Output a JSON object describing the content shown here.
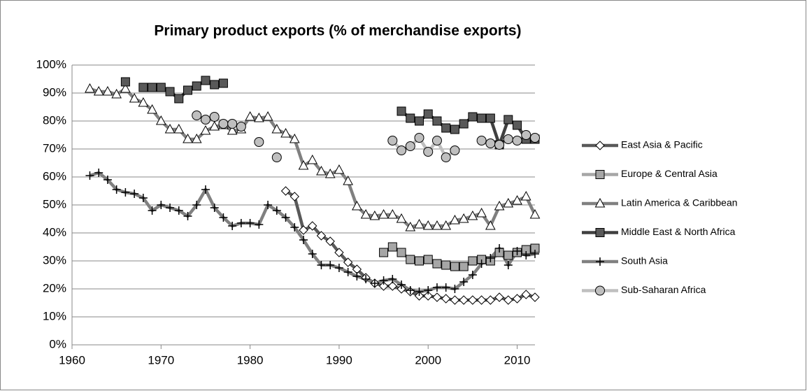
{
  "chart_data": {
    "type": "line",
    "title": "Primary product exports (% of merchandise exports)",
    "x": [
      1962,
      1963,
      1964,
      1965,
      1966,
      1967,
      1968,
      1969,
      1970,
      1971,
      1972,
      1973,
      1974,
      1975,
      1976,
      1977,
      1978,
      1979,
      1980,
      1981,
      1982,
      1983,
      1984,
      1985,
      1986,
      1987,
      1988,
      1989,
      1990,
      1991,
      1992,
      1993,
      1994,
      1995,
      1996,
      1997,
      1998,
      1999,
      2000,
      2001,
      2002,
      2003,
      2004,
      2005,
      2006,
      2007,
      2008,
      2009,
      2010,
      2011,
      2012
    ],
    "xlim": [
      1960,
      2012
    ],
    "xticks": [
      1960,
      1970,
      1980,
      1990,
      2000,
      2010
    ],
    "ylim": [
      0,
      100
    ],
    "yticks": [
      {
        "value": 0,
        "label": "0%"
      },
      {
        "value": 10,
        "label": "10%"
      },
      {
        "value": 20,
        "label": "20%"
      },
      {
        "value": 30,
        "label": "30%"
      },
      {
        "value": 40,
        "label": "40%"
      },
      {
        "value": 50,
        "label": "50%"
      },
      {
        "value": 60,
        "label": "60%"
      },
      {
        "value": 70,
        "label": "70%"
      },
      {
        "value": 80,
        "label": "80%"
      },
      {
        "value": 90,
        "label": "90%"
      },
      {
        "value": 100,
        "label": "100%"
      }
    ],
    "grid": true,
    "legend": "right",
    "series": [
      {
        "name": "East Asia & Pacific",
        "color": "#595959",
        "marker": "diamond",
        "marker_fill": "#ffffff",
        "values": [
          null,
          null,
          null,
          null,
          null,
          null,
          null,
          null,
          null,
          null,
          null,
          null,
          null,
          null,
          null,
          null,
          null,
          null,
          null,
          null,
          null,
          null,
          55,
          53,
          41,
          42.5,
          39,
          37,
          33,
          29.5,
          27,
          24,
          22,
          21,
          21,
          20,
          19,
          17.5,
          17.5,
          17,
          16.5,
          16,
          16,
          16,
          16,
          16,
          17,
          16,
          16.5,
          18,
          17
        ]
      },
      {
        "name": "Europe & Central Asia",
        "color": "#a6a6a6",
        "marker": "square",
        "marker_fill": "#a6a6a6",
        "values": [
          null,
          null,
          null,
          null,
          null,
          null,
          null,
          null,
          null,
          null,
          null,
          null,
          null,
          null,
          null,
          null,
          null,
          null,
          null,
          null,
          null,
          null,
          null,
          null,
          null,
          null,
          null,
          null,
          null,
          null,
          null,
          null,
          null,
          33,
          35,
          33,
          30.5,
          30,
          30.5,
          29,
          28.5,
          28,
          28,
          30,
          30.5,
          30,
          33,
          32,
          33,
          34,
          34.5
        ]
      },
      {
        "name": "Latin America & Caribbean",
        "color": "#808080",
        "marker": "triangle",
        "marker_fill": "#ffffff",
        "values": [
          91.5,
          90.5,
          90.5,
          89.5,
          91.5,
          88,
          86.5,
          84,
          80,
          77,
          77,
          73.5,
          73.5,
          76.5,
          78,
          78.5,
          76.5,
          77,
          81.5,
          81,
          81.5,
          77,
          75.5,
          73.5,
          64,
          66,
          62,
          61,
          62.5,
          58.5,
          49.5,
          46.5,
          46,
          46.5,
          46.5,
          45,
          42,
          43,
          42.5,
          42.5,
          42.5,
          44.5,
          45,
          46,
          47,
          42.5,
          49.5,
          50.5,
          51.5,
          53,
          46.5
        ]
      },
      {
        "name": "Middle East & North Africa",
        "color": "#404040",
        "marker": "square",
        "marker_fill": "#595959",
        "values": [
          null,
          null,
          null,
          null,
          94,
          null,
          92,
          92,
          92,
          90.5,
          88,
          91,
          92.5,
          94.5,
          93,
          93.5,
          null,
          null,
          null,
          null,
          null,
          null,
          null,
          null,
          null,
          null,
          null,
          null,
          null,
          null,
          null,
          null,
          null,
          null,
          null,
          83.5,
          81,
          80,
          82.5,
          80,
          77.5,
          77,
          79,
          81.5,
          81,
          81,
          71.5,
          80.5,
          78.5,
          73.5,
          73.5
        ]
      },
      {
        "name": "South Asia",
        "color": "#808080",
        "marker": "plus",
        "marker_fill": "#000000",
        "values": [
          60.5,
          61.5,
          59,
          55.5,
          54.5,
          54,
          52.5,
          48,
          50,
          49,
          48,
          46,
          50,
          55.5,
          49,
          45.5,
          42.5,
          43.5,
          43.5,
          43,
          50,
          48,
          45.5,
          42,
          37.5,
          32.5,
          28.5,
          28.5,
          27.5,
          26,
          24.5,
          23.5,
          22,
          23,
          23.5,
          21.5,
          19.5,
          19,
          19.5,
          20.5,
          20.5,
          20,
          22.5,
          25,
          29,
          31,
          34.5,
          28.5,
          33.5,
          32,
          32.5
        ]
      },
      {
        "name": "Sub-Saharan Africa",
        "color": "#bfbfbf",
        "marker": "circle",
        "marker_fill": "#bfbfbf",
        "values": [
          null,
          null,
          null,
          null,
          null,
          null,
          null,
          null,
          null,
          null,
          null,
          null,
          82,
          80.5,
          81.5,
          79,
          79,
          78,
          null,
          72.5,
          null,
          67,
          null,
          null,
          null,
          null,
          null,
          null,
          null,
          null,
          null,
          null,
          null,
          null,
          73,
          69.5,
          71,
          74,
          69,
          73,
          67,
          69.5,
          null,
          null,
          73,
          72,
          71.5,
          73.5,
          73,
          75,
          74
        ]
      }
    ]
  }
}
